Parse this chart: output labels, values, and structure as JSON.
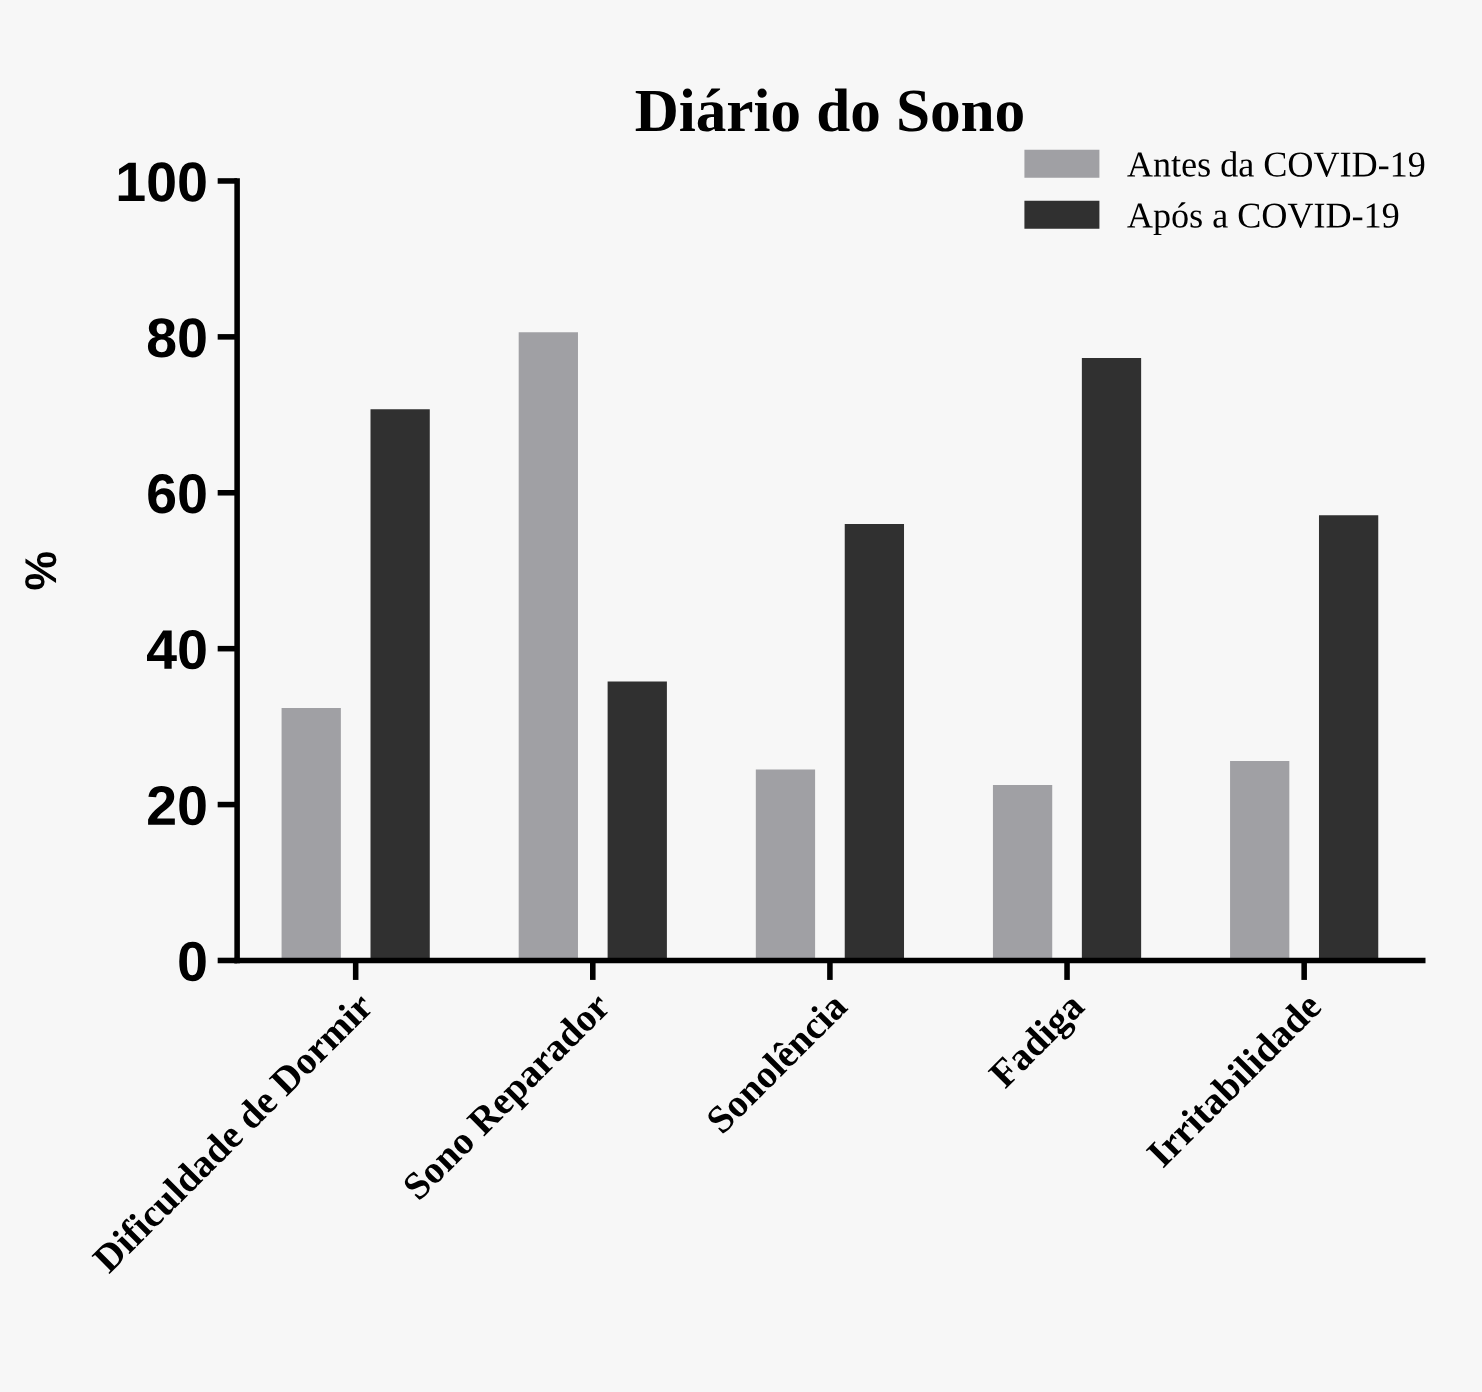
{
  "chart_data": {
    "type": "bar",
    "title": "Diário do Sono",
    "ylabel": "%",
    "categories": [
      "Dificuldade de Dormir",
      "Sono Reparador",
      "Sonolência",
      "Fadiga",
      "Irritabilidade"
    ],
    "series": [
      {
        "name": "Antes da COVID-19",
        "color": "#a0a0a4",
        "values": [
          32.4,
          80.6,
          24.5,
          22.5,
          25.6
        ]
      },
      {
        "name": "Após a COVID-19",
        "color": "#303030",
        "values": [
          70.7,
          35.8,
          56.0,
          77.3,
          57.1
        ]
      }
    ],
    "ylim": [
      0,
      100
    ],
    "yticks": [
      0,
      20,
      40,
      60,
      80,
      100
    ],
    "grid": false,
    "legend": "top right"
  }
}
